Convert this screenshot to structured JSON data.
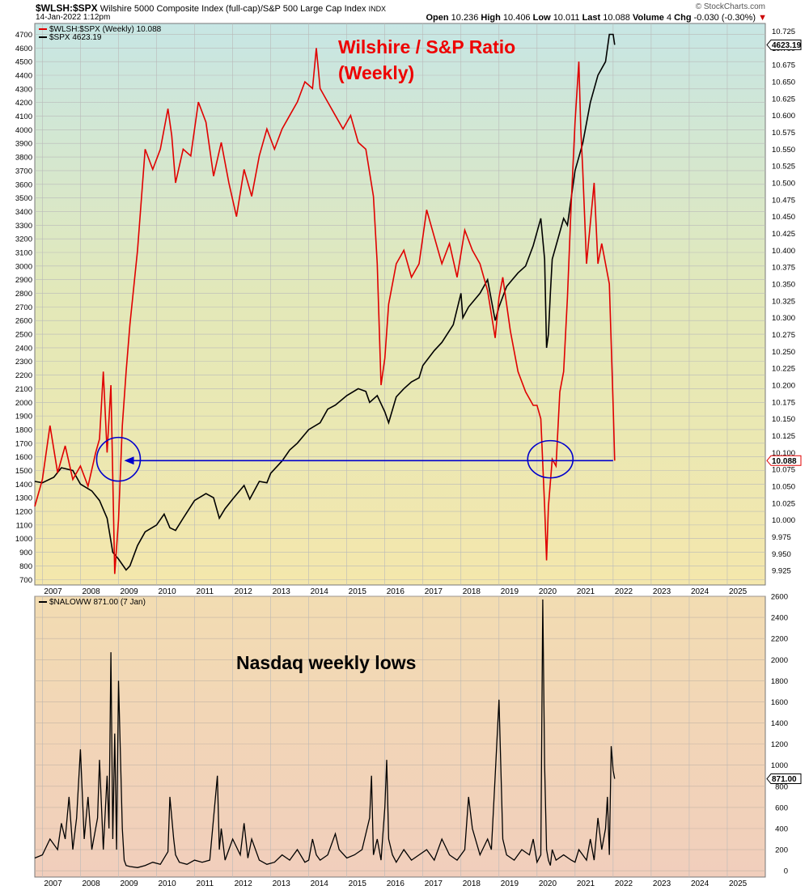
{
  "header": {
    "symbol": "$WLSH:$SPX",
    "description": "Wilshire 5000 Composite Index (full-cap)/S&P 500 Large Cap Index",
    "exchange": "INDX",
    "date": "14-Jan-2022 1:12pm",
    "brand": "© StockCharts.com",
    "quote": {
      "open_label": "Open",
      "open": "10.236",
      "high_label": "High",
      "high": "10.406",
      "low_label": "Low",
      "low": "10.011",
      "last_label": "Last",
      "last": "10.088",
      "volume_label": "Volume",
      "volume": "4",
      "chg_label": "Chg",
      "chg": "-0.030 (-0.30%)"
    }
  },
  "colors": {
    "ratio_line": "#e00000",
    "spx_line": "#000000",
    "annotation": "#0000cc",
    "title_text": "#ee0000"
  },
  "chart_data": [
    {
      "type": "line",
      "legend": [
        "$WLSH:$SPX (Weekly) 10.088",
        "$SPX 4623.19"
      ],
      "annotations": [
        "Wilshire / S&P Ratio",
        "(Weekly)"
      ],
      "x_ticks": [
        "2007",
        "2008",
        "2009",
        "2010",
        "2011",
        "2012",
        "2013",
        "2014",
        "2015",
        "2016",
        "2017",
        "2018",
        "2019",
        "2020",
        "2021",
        "2022",
        "2023",
        "2024",
        "2025"
      ],
      "x_range": [
        2006.8,
        2026.0
      ],
      "y_left_ticks": [
        700,
        800,
        900,
        1000,
        1100,
        1200,
        1300,
        1400,
        1500,
        1600,
        1700,
        1800,
        1900,
        2000,
        2100,
        2200,
        2300,
        2400,
        2500,
        2600,
        2700,
        2800,
        2900,
        3000,
        3100,
        3200,
        3300,
        3400,
        3500,
        3600,
        3700,
        3800,
        3900,
        4000,
        4100,
        4200,
        4300,
        4400,
        4500,
        4600,
        4700
      ],
      "y_left_range": [
        660,
        4780
      ],
      "y_right_ticks": [
        "9.925",
        "9.950",
        "9.975",
        "10.000",
        "10.025",
        "10.050",
        "10.075",
        "10.100",
        "10.125",
        "10.150",
        "10.175",
        "10.200",
        "10.225",
        "10.250",
        "10.275",
        "10.300",
        "10.325",
        "10.350",
        "10.375",
        "10.400",
        "10.425",
        "10.450",
        "10.475",
        "10.500",
        "10.525",
        "10.550",
        "10.575",
        "10.600",
        "10.625",
        "10.650",
        "10.675",
        "10.700",
        "10.725"
      ],
      "y_right_range": [
        9.9035,
        10.7365
      ],
      "last_labels": {
        "spx": "4623.19",
        "ratio": "10.088"
      },
      "series": [
        {
          "name": "$WLSH:$SPX (Weekly)",
          "axis": "right",
          "x": [
            2006.8,
            2007.0,
            2007.2,
            2007.4,
            2007.6,
            2007.8,
            2008.0,
            2008.2,
            2008.4,
            2008.5,
            2008.6,
            2008.7,
            2008.8,
            2008.9,
            2009.0,
            2009.1,
            2009.2,
            2009.3,
            2009.5,
            2009.7,
            2009.9,
            2010.1,
            2010.3,
            2010.4,
            2010.5,
            2010.7,
            2010.9,
            2011.1,
            2011.3,
            2011.5,
            2011.7,
            2011.9,
            2012.1,
            2012.3,
            2012.5,
            2012.7,
            2012.9,
            2013.1,
            2013.3,
            2013.5,
            2013.7,
            2013.9,
            2014.1,
            2014.2,
            2014.3,
            2014.5,
            2014.7,
            2014.9,
            2015.1,
            2015.3,
            2015.5,
            2015.7,
            2015.8,
            2015.9,
            2016.0,
            2016.1,
            2016.3,
            2016.5,
            2016.7,
            2016.9,
            2017.1,
            2017.3,
            2017.5,
            2017.7,
            2017.9,
            2018.1,
            2018.3,
            2018.5,
            2018.7,
            2018.9,
            2019.0,
            2019.1,
            2019.3,
            2019.5,
            2019.7,
            2019.9,
            2020.0,
            2020.1,
            2020.2,
            2020.25,
            2020.3,
            2020.4,
            2020.5,
            2020.6,
            2020.7,
            2020.8,
            2020.9,
            2021.0,
            2021.1,
            2021.15,
            2021.2,
            2021.3,
            2021.4,
            2021.5,
            2021.6,
            2021.7,
            2021.8,
            2021.9,
            2022.0,
            2022.04
          ],
          "values": [
            10.02,
            10.06,
            10.14,
            10.07,
            10.11,
            10.06,
            10.08,
            10.05,
            10.1,
            10.12,
            10.22,
            10.1,
            10.2,
            9.92,
            10.0,
            10.14,
            10.22,
            10.29,
            10.4,
            10.55,
            10.52,
            10.55,
            10.61,
            10.57,
            10.5,
            10.55,
            10.54,
            10.62,
            10.59,
            10.51,
            10.56,
            10.5,
            10.45,
            10.52,
            10.48,
            10.54,
            10.58,
            10.55,
            10.58,
            10.6,
            10.62,
            10.65,
            10.64,
            10.7,
            10.64,
            10.62,
            10.6,
            10.58,
            10.6,
            10.56,
            10.55,
            10.48,
            10.38,
            10.2,
            10.24,
            10.32,
            10.38,
            10.4,
            10.36,
            10.38,
            10.46,
            10.42,
            10.38,
            10.41,
            10.36,
            10.43,
            10.4,
            10.38,
            10.34,
            10.27,
            10.33,
            10.36,
            10.28,
            10.22,
            10.19,
            10.17,
            10.17,
            10.15,
            10.02,
            9.94,
            10.02,
            10.09,
            10.08,
            10.19,
            10.22,
            10.33,
            10.47,
            10.59,
            10.68,
            10.58,
            10.52,
            10.38,
            10.44,
            10.5,
            10.38,
            10.41,
            10.38,
            10.35,
            10.17,
            10.088
          ]
        },
        {
          "name": "$SPX",
          "axis": "left",
          "x": [
            2006.8,
            2007.0,
            2007.3,
            2007.5,
            2007.8,
            2008.0,
            2008.3,
            2008.5,
            2008.7,
            2008.85,
            2009.0,
            2009.2,
            2009.3,
            2009.5,
            2009.7,
            2010.0,
            2010.2,
            2010.35,
            2010.5,
            2010.7,
            2011.0,
            2011.3,
            2011.5,
            2011.65,
            2011.8,
            2012.0,
            2012.3,
            2012.45,
            2012.7,
            2012.9,
            2013.0,
            2013.3,
            2013.5,
            2013.7,
            2014.0,
            2014.3,
            2014.5,
            2014.7,
            2015.0,
            2015.3,
            2015.5,
            2015.6,
            2015.8,
            2016.0,
            2016.1,
            2016.3,
            2016.5,
            2016.7,
            2016.9,
            2017.0,
            2017.3,
            2017.5,
            2017.8,
            2018.0,
            2018.05,
            2018.2,
            2018.5,
            2018.7,
            2018.9,
            2019.0,
            2019.2,
            2019.5,
            2019.7,
            2019.9,
            2020.0,
            2020.1,
            2020.2,
            2020.25,
            2020.3,
            2020.35,
            2020.4,
            2020.55,
            2020.7,
            2020.8,
            2020.9,
            2021.0,
            2021.2,
            2021.4,
            2021.6,
            2021.8,
            2021.9,
            2022.0,
            2022.04
          ],
          "values": [
            1420,
            1410,
            1450,
            1520,
            1500,
            1400,
            1350,
            1280,
            1150,
            900,
            850,
            770,
            800,
            950,
            1050,
            1100,
            1180,
            1080,
            1060,
            1150,
            1280,
            1330,
            1300,
            1150,
            1220,
            1290,
            1390,
            1290,
            1420,
            1410,
            1480,
            1570,
            1650,
            1700,
            1800,
            1850,
            1950,
            1980,
            2050,
            2100,
            2080,
            2000,
            2050,
            1930,
            1850,
            2040,
            2100,
            2150,
            2180,
            2270,
            2380,
            2440,
            2570,
            2800,
            2620,
            2700,
            2800,
            2900,
            2600,
            2700,
            2850,
            2950,
            3000,
            3150,
            3250,
            3350,
            3050,
            2400,
            2500,
            2800,
            3050,
            3200,
            3350,
            3300,
            3500,
            3700,
            3900,
            4200,
            4400,
            4500,
            4700,
            4700,
            4623.19
          ]
        }
      ],
      "arrow": {
        "from_x": 2022.0,
        "to_x": 2009.15,
        "at_value": 10.088
      },
      "circles": [
        {
          "x": 2009.0,
          "value": 10.09
        },
        {
          "x": 2020.35,
          "value": 10.09
        }
      ]
    },
    {
      "type": "line",
      "legend": [
        "$NALOWW 871.00 (7 Jan)"
      ],
      "annotations": [
        "Nasdaq weekly lows"
      ],
      "x_ticks": [
        "2007",
        "2008",
        "2009",
        "2010",
        "2011",
        "2012",
        "2013",
        "2014",
        "2015",
        "2016",
        "2017",
        "2018",
        "2019",
        "2020",
        "2021",
        "2022",
        "2023",
        "2024",
        "2025"
      ],
      "x_range": [
        2006.8,
        2026.0
      ],
      "y_ticks": [
        0,
        200,
        400,
        600,
        800,
        1000,
        1200,
        1400,
        1600,
        1800,
        2000,
        2200,
        2400,
        2600
      ],
      "y_range": [
        -60,
        2600
      ],
      "last_label": "871.00",
      "series": [
        {
          "name": "$NALOWW",
          "axis": "right",
          "x": [
            2006.8,
            2007.0,
            2007.2,
            2007.4,
            2007.5,
            2007.6,
            2007.7,
            2007.8,
            2007.9,
            2008.0,
            2008.1,
            2008.2,
            2008.3,
            2008.45,
            2008.5,
            2008.6,
            2008.7,
            2008.75,
            2008.8,
            2008.85,
            2008.9,
            2008.95,
            2009.0,
            2009.1,
            2009.15,
            2009.2,
            2009.3,
            2009.5,
            2009.7,
            2009.9,
            2010.1,
            2010.3,
            2010.35,
            2010.45,
            2010.5,
            2010.6,
            2010.8,
            2011.0,
            2011.2,
            2011.4,
            2011.6,
            2011.65,
            2011.7,
            2011.8,
            2011.9,
            2012.0,
            2012.2,
            2012.3,
            2012.4,
            2012.5,
            2012.7,
            2012.9,
            2013.1,
            2013.3,
            2013.5,
            2013.7,
            2013.9,
            2014.0,
            2014.1,
            2014.2,
            2014.3,
            2014.5,
            2014.7,
            2014.8,
            2015.0,
            2015.2,
            2015.4,
            2015.6,
            2015.65,
            2015.7,
            2015.8,
            2015.9,
            2016.0,
            2016.05,
            2016.1,
            2016.2,
            2016.3,
            2016.5,
            2016.7,
            2016.9,
            2017.1,
            2017.3,
            2017.5,
            2017.7,
            2017.9,
            2018.1,
            2018.2,
            2018.3,
            2018.5,
            2018.7,
            2018.8,
            2018.9,
            2019.0,
            2019.1,
            2019.2,
            2019.4,
            2019.6,
            2019.8,
            2019.9,
            2020.0,
            2020.1,
            2020.15,
            2020.2,
            2020.25,
            2020.3,
            2020.35,
            2020.4,
            2020.5,
            2020.7,
            2020.9,
            2021.0,
            2021.1,
            2021.2,
            2021.3,
            2021.4,
            2021.5,
            2021.6,
            2021.7,
            2021.8,
            2021.85,
            2021.9,
            2021.95,
            2022.0,
            2022.04
          ],
          "values": [
            120,
            150,
            300,
            200,
            450,
            300,
            700,
            200,
            500,
            1150,
            300,
            700,
            200,
            500,
            1050,
            200,
            900,
            400,
            2070,
            300,
            1300,
            200,
            1800,
            400,
            100,
            50,
            40,
            30,
            50,
            80,
            60,
            180,
            700,
            300,
            150,
            80,
            60,
            100,
            80,
            100,
            900,
            200,
            400,
            100,
            200,
            300,
            150,
            450,
            120,
            300,
            100,
            60,
            80,
            150,
            100,
            200,
            80,
            100,
            300,
            150,
            100,
            150,
            350,
            200,
            120,
            150,
            200,
            500,
            900,
            150,
            300,
            100,
            600,
            1050,
            300,
            150,
            80,
            200,
            100,
            150,
            200,
            100,
            300,
            150,
            100,
            200,
            700,
            400,
            150,
            300,
            200,
            900,
            1620,
            300,
            150,
            100,
            200,
            150,
            300,
            80,
            150,
            2570,
            1000,
            200,
            100,
            50,
            200,
            100,
            150,
            100,
            80,
            200,
            150,
            100,
            300,
            100,
            500,
            200,
            400,
            700,
            150,
            1180,
            950,
            871
          ]
        }
      ]
    }
  ]
}
